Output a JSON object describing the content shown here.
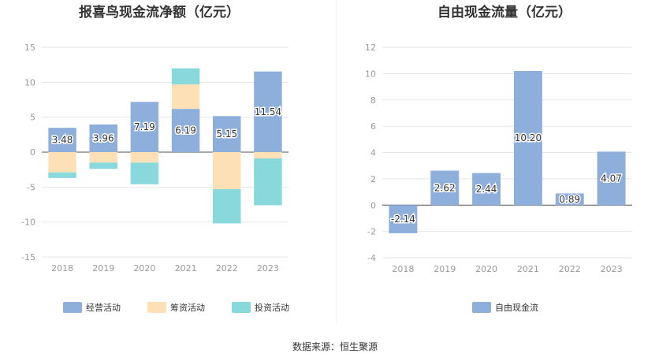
{
  "source_note": "数据来源：恒生聚源",
  "chart_data": [
    {
      "type": "bar",
      "stacked": true,
      "title": "报喜鸟现金流净额（亿元）",
      "categories": [
        "2018",
        "2019",
        "2020",
        "2021",
        "2022",
        "2023"
      ],
      "ylim": [
        -15,
        15
      ],
      "yticks": [
        15,
        10,
        5,
        0,
        -5,
        -10,
        -15
      ],
      "series": [
        {
          "name": "经营活动",
          "color": "#8eaedc",
          "values": [
            3.48,
            3.96,
            7.19,
            6.19,
            5.15,
            11.54
          ]
        },
        {
          "name": "筹资活动",
          "color": "#fde0b5",
          "values": [
            -2.9,
            -1.5,
            -1.5,
            3.5,
            -5.3,
            -0.9
          ]
        },
        {
          "name": "投资活动",
          "color": "#88d8dc",
          "values": [
            -0.8,
            -0.9,
            -3.1,
            2.3,
            -4.9,
            -6.7
          ]
        }
      ],
      "data_labels": [
        "3.48",
        "3.96",
        "7.19",
        "6.19",
        "5.15",
        "11.54"
      ]
    },
    {
      "type": "bar",
      "title": "自由现金流量（亿元）",
      "categories": [
        "2018",
        "2019",
        "2020",
        "2021",
        "2022",
        "2023"
      ],
      "ylim": [
        -4,
        12
      ],
      "yticks": [
        12,
        10,
        8,
        6,
        4,
        2,
        0,
        -2,
        -4
      ],
      "series": [
        {
          "name": "自由现金流",
          "color": "#8eaedc",
          "values": [
            -2.14,
            2.62,
            2.44,
            10.2,
            0.89,
            4.07
          ]
        }
      ],
      "data_labels": [
        "-2.14",
        "2.62",
        "2.44",
        "10.20",
        "0.89",
        "4.07"
      ]
    }
  ]
}
